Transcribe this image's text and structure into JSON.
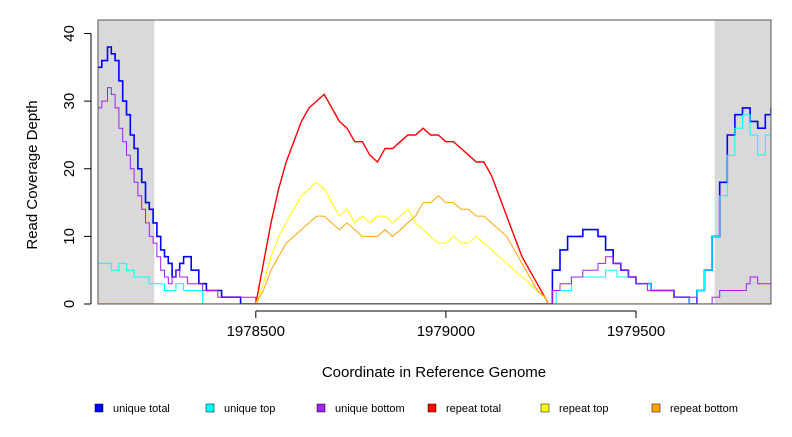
{
  "chart_data": {
    "type": "line",
    "title": "",
    "xlabel": "Coordinate in Reference Genome",
    "ylabel": "Read Coverage Depth",
    "xlim": [
      1978085,
      1979855
    ],
    "ylim": [
      0,
      42
    ],
    "x_ticks": [
      1978500,
      1979000,
      1979500
    ],
    "x_tick_labels": [
      "1978500",
      "1979000",
      "1979500"
    ],
    "y_ticks": [
      0,
      10,
      20,
      30,
      40
    ],
    "y_tick_labels": [
      "0",
      "10",
      "20",
      "30",
      "40"
    ],
    "shaded_regions": [
      {
        "name": "left-flank",
        "start": 1978085,
        "end": 1978233,
        "color": "#d9d9d9"
      },
      {
        "name": "right-flank",
        "start": 1979707,
        "end": 1979855,
        "color": "#d9d9d9"
      }
    ],
    "series": [
      {
        "name": "unique total",
        "color": "#0000ff",
        "width": 1.6,
        "step": true,
        "x": [
          1978085,
          1978095,
          1978110,
          1978120,
          1978130,
          1978140,
          1978150,
          1978160,
          1978170,
          1978180,
          1978190,
          1978200,
          1978210,
          1978220,
          1978230,
          1978240,
          1978250,
          1978260,
          1978270,
          1978280,
          1978290,
          1978300,
          1978310,
          1978330,
          1978350,
          1978370,
          1978390,
          1978410,
          1978440,
          1978460,
          1978500,
          1979270,
          1979280,
          1979300,
          1979320,
          1979340,
          1979360,
          1979380,
          1979400,
          1979420,
          1979440,
          1979460,
          1979480,
          1979500,
          1979520,
          1979540,
          1979560,
          1979580,
          1979600,
          1979620,
          1979640,
          1979660,
          1979680,
          1979700,
          1979720,
          1979740,
          1979760,
          1979780,
          1979800,
          1979820,
          1979840,
          1979855
        ],
        "y": [
          35,
          36,
          38,
          37,
          36,
          33,
          30,
          28,
          25,
          23,
          20,
          18,
          15,
          14,
          12,
          10,
          8,
          7,
          6,
          4,
          5,
          6,
          7,
          5,
          3,
          2,
          2,
          1,
          1,
          0,
          0,
          0,
          5,
          8,
          10,
          10,
          11,
          11,
          10,
          8,
          6,
          5,
          4,
          3,
          3,
          2,
          2,
          2,
          1,
          1,
          0,
          2,
          5,
          10,
          18,
          25,
          28,
          29,
          27,
          26,
          28,
          29
        ]
      },
      {
        "name": "unique top",
        "color": "#00ffff",
        "width": 1.0,
        "step": true,
        "x": [
          1978085,
          1978120,
          1978140,
          1978160,
          1978180,
          1978220,
          1978260,
          1978290,
          1978310,
          1978360,
          1978500,
          1979270,
          1979290,
          1979330,
          1979380,
          1979420,
          1979450,
          1979500,
          1979540,
          1979600,
          1979640,
          1979660,
          1979680,
          1979700,
          1979720,
          1979740,
          1979760,
          1979780,
          1979800,
          1979820,
          1979840,
          1979855
        ],
        "y": [
          6,
          5,
          6,
          5,
          4,
          3,
          2,
          3,
          2,
          0,
          0,
          0,
          2,
          4,
          4,
          5,
          4,
          3,
          2,
          1,
          0,
          2,
          5,
          10,
          16,
          22,
          26,
          28,
          25,
          22,
          25,
          26
        ]
      },
      {
        "name": "unique bottom",
        "color": "#a020f0",
        "width": 1.0,
        "step": true,
        "x": [
          1978085,
          1978095,
          1978110,
          1978120,
          1978130,
          1978140,
          1978150,
          1978160,
          1978170,
          1978180,
          1978190,
          1978200,
          1978210,
          1978220,
          1978230,
          1978240,
          1978250,
          1978260,
          1978270,
          1978280,
          1978290,
          1978300,
          1978320,
          1978360,
          1978400,
          1978500,
          1979270,
          1979280,
          1979300,
          1979330,
          1979360,
          1979380,
          1979400,
          1979420,
          1979440,
          1979460,
          1979480,
          1979500,
          1979530,
          1979560,
          1979600,
          1979620,
          1979660,
          1979700,
          1979720,
          1979760,
          1979790,
          1979800,
          1979820,
          1979855
        ],
        "y": [
          29,
          30,
          32,
          31,
          29,
          26,
          24,
          22,
          20,
          18,
          16,
          14,
          12,
          10,
          9,
          7,
          5,
          4,
          3,
          4,
          5,
          4,
          3,
          2,
          1,
          0,
          0,
          2,
          3,
          4,
          5,
          5,
          6,
          7,
          6,
          5,
          4,
          3,
          2,
          2,
          1,
          1,
          0,
          1,
          2,
          2,
          3,
          4,
          3,
          3
        ]
      },
      {
        "name": "repeat total",
        "color": "#ff0000",
        "width": 1.4,
        "step": false,
        "x": [
          1978500,
          1978520,
          1978540,
          1978560,
          1978580,
          1978600,
          1978620,
          1978640,
          1978660,
          1978680,
          1978700,
          1978720,
          1978740,
          1978760,
          1978780,
          1978800,
          1978820,
          1978840,
          1978860,
          1978880,
          1978900,
          1978920,
          1978940,
          1978960,
          1978980,
          1979000,
          1979020,
          1979040,
          1979060,
          1979080,
          1979100,
          1979120,
          1979140,
          1979160,
          1979180,
          1979200,
          1979220,
          1979240,
          1979260,
          1979270
        ],
        "y": [
          0,
          6,
          12,
          17,
          21,
          24,
          27,
          29,
          30,
          31,
          29,
          27,
          26,
          24,
          24,
          22,
          21,
          23,
          23,
          24,
          25,
          25,
          26,
          25,
          25,
          24,
          24,
          23,
          22,
          21,
          21,
          19,
          16,
          13,
          10,
          7,
          5,
          3,
          1,
          0
        ]
      },
      {
        "name": "repeat top",
        "color": "#ffff00",
        "width": 1.0,
        "step": false,
        "x": [
          1978500,
          1978520,
          1978540,
          1978560,
          1978580,
          1978600,
          1978620,
          1978640,
          1978660,
          1978680,
          1978700,
          1978720,
          1978740,
          1978760,
          1978780,
          1978800,
          1978820,
          1978840,
          1978860,
          1978880,
          1978900,
          1978920,
          1978940,
          1978960,
          1978980,
          1979000,
          1979020,
          1979040,
          1979060,
          1979080,
          1979100,
          1979120,
          1979140,
          1979160,
          1979180,
          1979200,
          1979220,
          1979240,
          1979260,
          1979270
        ],
        "y": [
          0,
          3,
          7,
          10,
          12,
          14,
          16,
          17,
          18,
          17,
          15,
          13,
          14,
          12,
          13,
          12,
          13,
          13,
          12,
          13,
          14,
          12,
          11,
          10,
          9,
          9,
          10,
          9,
          9,
          10,
          9,
          8,
          7,
          6,
          5,
          4,
          3,
          2,
          1,
          0
        ]
      },
      {
        "name": "repeat bottom",
        "color": "#ffa500",
        "width": 1.0,
        "step": false,
        "x": [
          1978500,
          1978520,
          1978540,
          1978560,
          1978580,
          1978600,
          1978620,
          1978640,
          1978660,
          1978680,
          1978700,
          1978720,
          1978740,
          1978760,
          1978780,
          1978800,
          1978820,
          1978840,
          1978860,
          1978880,
          1978900,
          1978920,
          1978940,
          1978960,
          1978980,
          1979000,
          1979020,
          1979040,
          1979060,
          1979080,
          1979100,
          1979120,
          1979140,
          1979160,
          1979180,
          1979200,
          1979220,
          1979240,
          1979260,
          1979270
        ],
        "y": [
          0,
          2,
          5,
          7,
          9,
          10,
          11,
          12,
          13,
          13,
          12,
          11,
          12,
          11,
          10,
          10,
          10,
          11,
          10,
          11,
          12,
          13,
          15,
          15,
          16,
          15,
          15,
          14,
          14,
          13,
          13,
          12,
          11,
          10,
          8,
          6,
          4,
          2,
          1,
          0
        ]
      }
    ],
    "baseline": {
      "color": "#ffa500",
      "value": 0
    },
    "legend": {
      "position": "bottom",
      "items": [
        {
          "label": "unique total",
          "color": "#0000ff"
        },
        {
          "label": "unique top",
          "color": "#00ffff"
        },
        {
          "label": "unique bottom",
          "color": "#a020f0"
        },
        {
          "label": "repeat total",
          "color": "#ff0000"
        },
        {
          "label": "repeat top",
          "color": "#ffff00"
        },
        {
          "label": "repeat bottom",
          "color": "#ffa500"
        }
      ]
    }
  }
}
